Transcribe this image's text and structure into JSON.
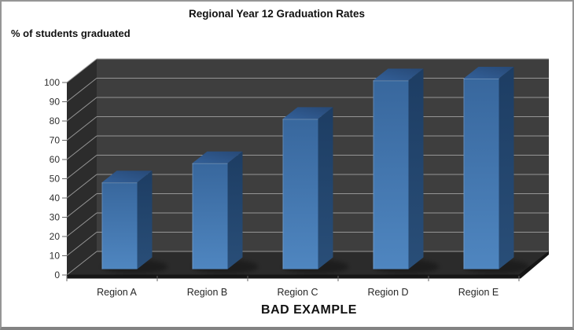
{
  "header": {
    "title": "Regional Year 12 Graduation Rates",
    "y_axis_note": "% of students graduated"
  },
  "caption": "BAD EXAMPLE",
  "chart_data": {
    "type": "bar",
    "style": "3d-column",
    "title": "Regional Year 12 Graduation Rates",
    "ylabel": "% of students graduated",
    "xlabel": "",
    "categories": [
      "Region A",
      "Region B",
      "Region C",
      "Region D",
      "Region E"
    ],
    "values": [
      45,
      55,
      78,
      98,
      99
    ],
    "ylim": [
      0,
      100
    ],
    "yticks": [
      0,
      10,
      20,
      30,
      40,
      50,
      60,
      70,
      80,
      90,
      100
    ],
    "grid": true,
    "legend": false,
    "annotation": "BAD EXAMPLE",
    "colors": {
      "bar_front_top": "#38679d",
      "bar_front_bottom": "#4f86c0",
      "bar_top_back": "#274976",
      "bar_top_front": "#336099",
      "bar_side_dark": "#1d3d63",
      "bar_side_light": "#294e78",
      "wall_back": "#3e3e3e",
      "wall_left": "#2c2c2c",
      "floor": "#2b2b2b",
      "floor_edge": "#161616",
      "gridline": "#969696",
      "tick": "#666666",
      "axis_text": "#303030",
      "category_text": "#262626"
    }
  }
}
